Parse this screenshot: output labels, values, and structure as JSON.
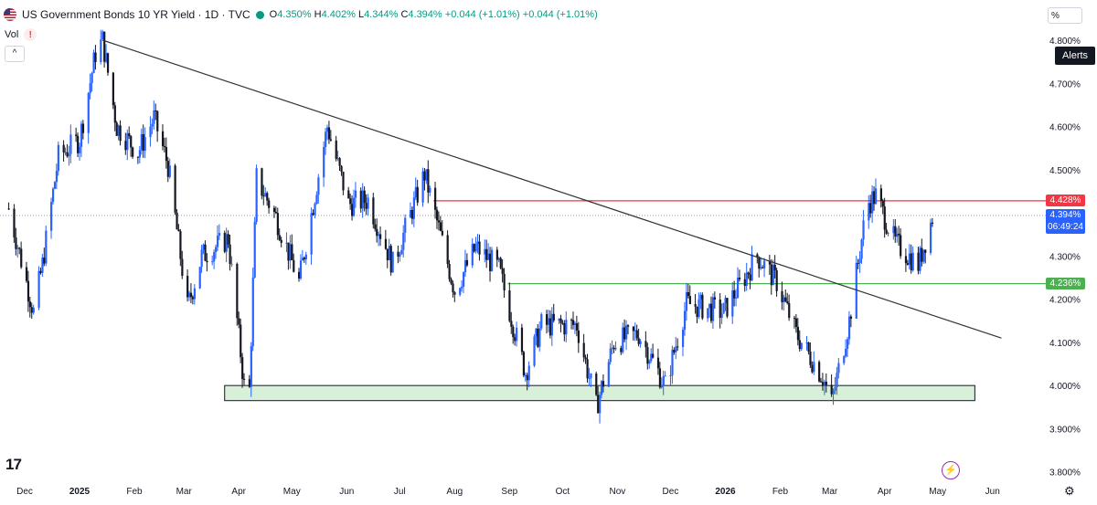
{
  "header": {
    "title": "US Government Bonds 10 YR Yield · 1D · TVC",
    "open_label": "O",
    "open": "4.350%",
    "high_label": "H",
    "high": "4.402%",
    "low_label": "L",
    "low": "4.344%",
    "close_label": "C",
    "close": "4.394%",
    "change": "+0.044 (+1.01%)",
    "change2": "+0.044 (+1.01%)"
  },
  "vol_label": "Vol",
  "vol_warning": "!",
  "collapse_glyph": "^",
  "scale_button": "%",
  "alerts_label": "Alerts",
  "price_tags": {
    "resistance": "4.428%",
    "last": "4.394%",
    "countdown": "06:49:24",
    "support": "4.236%"
  },
  "logo_text": "17",
  "bolt_glyph": "⚡",
  "settings_glyph": "⚙",
  "colors": {
    "up": "#2962ff",
    "down": "#131722",
    "resistance": "#f23645",
    "support": "#4caf50",
    "zone_fill": "#d8f0d8",
    "trendline": "#333333",
    "last_tag": "#2962ff",
    "live": "#089981"
  },
  "chart_data": {
    "type": "candlestick",
    "title": "US Government Bonds 10 YR Yield · 1D · TVC",
    "y_ticks": [
      "4.800%",
      "4.700%",
      "4.600%",
      "4.500%",
      "4.400%",
      "4.300%",
      "4.200%",
      "4.100%",
      "4.000%",
      "3.900%",
      "3.800%"
    ],
    "y_tick_values": [
      4.8,
      4.7,
      4.6,
      4.5,
      4.4,
      4.3,
      4.2,
      4.1,
      4.0,
      3.9,
      3.8
    ],
    "ylim": [
      3.78,
      4.84
    ],
    "x_ticks": [
      "Dec",
      "2025",
      "Feb",
      "Mar",
      "Apr",
      "May",
      "Jun",
      "Jul",
      "Aug",
      "Sep",
      "Oct",
      "Nov",
      "Dec",
      "2026",
      "Feb",
      "Mar",
      "Apr",
      "May",
      "Jun"
    ],
    "x_tick_dates": [
      "2024-12-01",
      "2025-01-01",
      "2025-02-01",
      "2025-03-01",
      "2025-04-01",
      "2025-05-01",
      "2025-06-01",
      "2025-07-01",
      "2025-08-01",
      "2025-09-01",
      "2025-10-01",
      "2025-11-01",
      "2025-12-01",
      "2026-01-01",
      "2026-02-01",
      "2026-03-01",
      "2026-04-01",
      "2026-05-01",
      "2026-06-01"
    ],
    "bold_ticks": [
      "2025",
      "2026"
    ],
    "series_close": [
      [
        "2024-11-22",
        4.41
      ],
      [
        "2024-12-06",
        4.17
      ],
      [
        "2024-12-11",
        4.28
      ],
      [
        "2024-12-20",
        4.53
      ],
      [
        "2025-01-01",
        4.57
      ],
      [
        "2025-01-10",
        4.77
      ],
      [
        "2025-01-14",
        4.8
      ],
      [
        "2025-01-22",
        4.6
      ],
      [
        "2025-02-03",
        4.54
      ],
      [
        "2025-02-12",
        4.62
      ],
      [
        "2025-02-20",
        4.51
      ],
      [
        "2025-03-03",
        4.18
      ],
      [
        "2025-03-11",
        4.3
      ],
      [
        "2025-03-26",
        4.34
      ],
      [
        "2025-04-04",
        4.0
      ],
      [
        "2025-04-07",
        3.99
      ],
      [
        "2025-04-11",
        4.48
      ],
      [
        "2025-04-22",
        4.39
      ],
      [
        "2025-05-05",
        4.24
      ],
      [
        "2025-05-21",
        4.6
      ],
      [
        "2025-06-02",
        4.42
      ],
      [
        "2025-06-13",
        4.43
      ],
      [
        "2025-06-27",
        4.28
      ],
      [
        "2025-07-15",
        4.49
      ],
      [
        "2025-08-01",
        4.22
      ],
      [
        "2025-08-13",
        4.32
      ],
      [
        "2025-08-26",
        4.27
      ],
      [
        "2025-09-10",
        4.03
      ],
      [
        "2025-09-19",
        4.14
      ],
      [
        "2025-10-09",
        4.14
      ],
      [
        "2025-10-20",
        3.95
      ],
      [
        "2025-10-30",
        4.1
      ],
      [
        "2025-11-13",
        4.12
      ],
      [
        "2025-11-28",
        4.0
      ],
      [
        "2025-12-10",
        4.19
      ],
      [
        "2025-12-31",
        4.17
      ],
      [
        "2026-01-19",
        4.3
      ],
      [
        "2026-01-30",
        4.24
      ],
      [
        "2026-02-10",
        4.12
      ],
      [
        "2026-02-25",
        4.02
      ],
      [
        "2026-03-02",
        3.96
      ],
      [
        "2026-03-12",
        4.15
      ],
      [
        "2026-03-22",
        4.42
      ],
      [
        "2026-03-27",
        4.44
      ],
      [
        "2026-04-07",
        4.33
      ],
      [
        "2026-04-20",
        4.28
      ],
      [
        "2026-04-28",
        4.39
      ]
    ],
    "volume_ticks_hidden": true,
    "horizontal_lines": [
      {
        "value": 4.428,
        "from": "2025-07-20",
        "color": "resistance"
      },
      {
        "value": 4.236,
        "from": "2025-08-31",
        "color": "support"
      }
    ],
    "last_price": 4.394,
    "trendline": {
      "from": [
        "2025-01-14",
        4.8
      ],
      "to": [
        "2026-06-06",
        4.11
      ]
    },
    "zone": {
      "from": "2025-03-24",
      "to": "2026-05-22",
      "low": 3.965,
      "high": 4.0
    },
    "grid": false,
    "legend": "top-left"
  }
}
